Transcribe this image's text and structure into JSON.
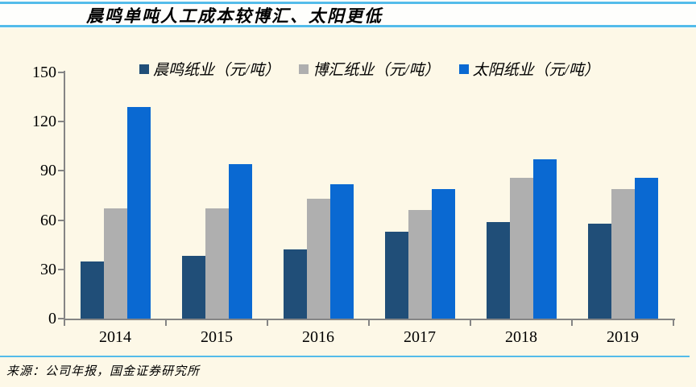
{
  "title": "晨鸣单吨人工成本较博汇、太阳更低",
  "source": "来源：公司年报，国金证券研究所",
  "colors": {
    "background": "#FDF8E7",
    "title_band_bg": "#FEFEFC",
    "accent_line": "#54BCEA",
    "axis": "#858585",
    "text": "#000000"
  },
  "chart_data": {
    "type": "bar",
    "title": "晨鸣单吨人工成本较博汇、太阳更低",
    "categories": [
      "2014",
      "2015",
      "2016",
      "2017",
      "2018",
      "2019"
    ],
    "series": [
      {
        "key": "chenming",
        "name": "晨鸣纸业（元/吨）",
        "color": "#204E78",
        "values": [
          35,
          38,
          42,
          53,
          59,
          58
        ]
      },
      {
        "key": "bohui",
        "name": "博汇纸业（元/吨）",
        "color": "#AFAFAF",
        "values": [
          67,
          67,
          73,
          66,
          86,
          79
        ]
      },
      {
        "key": "sun",
        "name": "太阳纸业（元/吨）",
        "color": "#0A69D2",
        "values": [
          129,
          94,
          82,
          79,
          97,
          86
        ]
      }
    ],
    "xlabel": "",
    "ylabel": "",
    "ylim": [
      0,
      150
    ],
    "yticks": [
      0,
      30,
      60,
      90,
      120,
      150
    ],
    "grid": false,
    "legend_position": "top"
  }
}
